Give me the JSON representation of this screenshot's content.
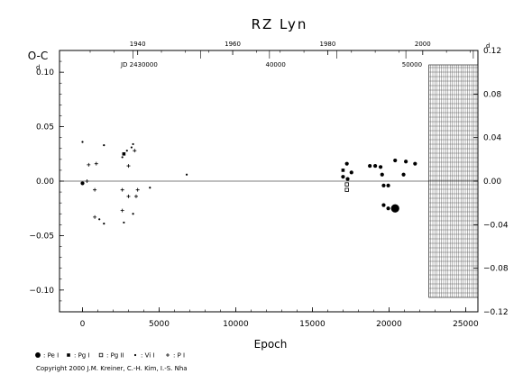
{
  "chart_data": {
    "type": "scatter",
    "title": "RZ Lyn",
    "ylabel": "O-C",
    "xlabel": "Epoch",
    "xlim": [
      -1500,
      25800
    ],
    "ylim": [
      -0.12,
      0.12
    ],
    "x_ticks": [
      0,
      5000,
      10000,
      15000,
      20000,
      25000
    ],
    "y_ticks_left": [
      {
        "v": 0.1,
        "label": "0.10",
        "d": true
      },
      {
        "v": 0.05,
        "label": "0.05",
        "d": false
      },
      {
        "v": 0.0,
        "label": "0.00",
        "d": false
      },
      {
        "v": -0.05,
        "label": "−0.05",
        "d": false
      },
      {
        "v": -0.1,
        "label": "−0.10",
        "d": false
      }
    ],
    "y_ticks_right": [
      {
        "v": 0.12,
        "label": "0.12",
        "d": true
      },
      {
        "v": 0.08,
        "label": "0.08",
        "d": false
      },
      {
        "v": 0.04,
        "label": "0.04",
        "d": false
      },
      {
        "v": 0.0,
        "label": "0.00",
        "d": false
      },
      {
        "v": -0.04,
        "label": "−0.04",
        "d": false
      },
      {
        "v": -0.08,
        "label": "−0.08",
        "d": false
      },
      {
        "v": -0.12,
        "label": "−0.12",
        "d": false
      }
    ],
    "year_axis": {
      "ticks": [
        {
          "label": "1940",
          "x": 3600
        },
        {
          "label": "1960",
          "x": 9800
        },
        {
          "label": "1980",
          "x": 16000
        },
        {
          "label": "2000",
          "x": 22200
        }
      ],
      "minor_x": [
        500,
        2050,
        5150,
        6700,
        8250,
        11350,
        12900,
        14450,
        17550,
        19100,
        20650,
        23750,
        25300
      ]
    },
    "jd_axis": {
      "labels": [
        {
          "label": "JD 2430000",
          "x": 3700
        },
        {
          "label": "40000",
          "x": 12600
        },
        {
          "label": "50000",
          "x": 21500
        }
      ],
      "ticks": [
        3300,
        7700,
        12200,
        16600,
        21100,
        25500
      ]
    },
    "hatched_region": {
      "x0": 22600,
      "x1": 25800,
      "y0": -0.12,
      "y1": 0.12
    },
    "series": [
      {
        "marker": "circle",
        "symbol": "●",
        "key": ": Pe I",
        "points": [
          {
            "x": 17000,
            "y": 0.004,
            "s": 1
          },
          {
            "x": 17250,
            "y": 0.016,
            "s": 1
          },
          {
            "x": 17550,
            "y": 0.008,
            "s": 1
          },
          {
            "x": 18750,
            "y": 0.014,
            "s": 1
          },
          {
            "x": 19100,
            "y": 0.014,
            "s": 1
          },
          {
            "x": 19450,
            "y": 0.013,
            "s": 1
          },
          {
            "x": 19550,
            "y": 0.006,
            "s": 1
          },
          {
            "x": 19650,
            "y": -0.004,
            "s": 1
          },
          {
            "x": 19950,
            "y": -0.004,
            "s": 1
          },
          {
            "x": 19650,
            "y": -0.022,
            "s": 1
          },
          {
            "x": 19950,
            "y": -0.025,
            "s": 1
          },
          {
            "x": 20400,
            "y": 0.019,
            "s": 1
          },
          {
            "x": 20950,
            "y": 0.006,
            "s": 1
          },
          {
            "x": 21100,
            "y": 0.018,
            "s": 1
          },
          {
            "x": 21700,
            "y": 0.016,
            "s": 1
          },
          {
            "x": 20400,
            "y": -0.025,
            "s": 2.2
          },
          {
            "x": 17300,
            "y": 0.002,
            "s": 1
          },
          {
            "x": 0,
            "y": -0.002,
            "s": 1
          }
        ]
      },
      {
        "marker": "square",
        "symbol": "■",
        "key": ": Pg I",
        "points": [
          {
            "x": 17000,
            "y": 0.01,
            "s": 1
          },
          {
            "x": 2700,
            "y": 0.025,
            "s": 1
          }
        ]
      },
      {
        "marker": "open-square",
        "symbol": "□",
        "key": ": Pg II",
        "points": [
          {
            "x": 17250,
            "y": -0.003,
            "s": 1
          },
          {
            "x": 17250,
            "y": -0.008,
            "s": 1
          }
        ]
      },
      {
        "marker": "dot",
        "symbol": "•",
        "key": ": Vi I",
        "points": [
          {
            "x": 0,
            "y": 0.036,
            "s": 1
          },
          {
            "x": 1400,
            "y": 0.033,
            "s": 1
          },
          {
            "x": 2600,
            "y": 0.022,
            "s": 1
          },
          {
            "x": 2900,
            "y": 0.028,
            "s": 1
          },
          {
            "x": 3200,
            "y": 0.031,
            "s": 1
          },
          {
            "x": 3300,
            "y": 0.034,
            "s": 1
          },
          {
            "x": 2700,
            "y": -0.038,
            "s": 1
          },
          {
            "x": 1100,
            "y": -0.035,
            "s": 1
          },
          {
            "x": 1400,
            "y": -0.039,
            "s": 1
          },
          {
            "x": 3300,
            "y": -0.03,
            "s": 1
          },
          {
            "x": 4400,
            "y": -0.006,
            "s": 1
          },
          {
            "x": 6800,
            "y": 0.006,
            "s": 1
          }
        ]
      },
      {
        "marker": "plus",
        "symbol": "+",
        "key": ": P I",
        "points": [
          {
            "x": 400,
            "y": 0.015,
            "s": 1
          },
          {
            "x": 900,
            "y": 0.016,
            "s": 1
          },
          {
            "x": 3000,
            "y": 0.014,
            "s": 1
          },
          {
            "x": 3400,
            "y": 0.028,
            "s": 1
          },
          {
            "x": 800,
            "y": -0.033,
            "s": 1
          },
          {
            "x": 2600,
            "y": -0.027,
            "s": 1
          },
          {
            "x": 800,
            "y": -0.008,
            "s": 1
          },
          {
            "x": 2600,
            "y": -0.008,
            "s": 1
          },
          {
            "x": 3000,
            "y": -0.014,
            "s": 1
          },
          {
            "x": 3500,
            "y": -0.014,
            "s": 1
          },
          {
            "x": 3600,
            "y": -0.008,
            "s": 1
          },
          {
            "x": 300,
            "y": 0.0,
            "s": 1
          }
        ]
      }
    ]
  },
  "copyright": "Copyright 2000 J.M. Kreiner, C.-H. Kim, I.-S. Nha"
}
